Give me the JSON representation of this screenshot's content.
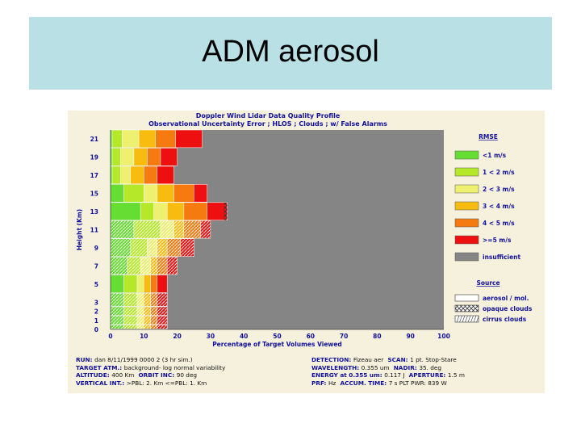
{
  "slide": {
    "title": "ADM aerosol"
  },
  "chart_data": {
    "type": "bar",
    "orientation": "horizontal-stacked",
    "title": "Doppler Wind Lidar Data Quality Profile",
    "subtitle": "Observational Uncertainty Error ; HLOS ; Clouds ; w/ False Alarms",
    "xlabel": "Percentage of Target Volumes Viewed",
    "ylabel": "Height (Km)",
    "xlim": [
      0,
      100
    ],
    "ylim": [
      0,
      22
    ],
    "x_ticks": [
      "0",
      "10",
      "20",
      "30",
      "40",
      "50",
      "60",
      "70",
      "80",
      "90",
      "100"
    ],
    "y_ticks": [
      {
        "label": "0",
        "value": 0
      },
      {
        "label": "1",
        "value": 1
      },
      {
        "label": "2",
        "value": 2
      },
      {
        "label": "3",
        "value": 3
      },
      {
        "label": "5",
        "value": 5
      },
      {
        "label": "7",
        "value": 7
      },
      {
        "label": "9",
        "value": 9
      },
      {
        "label": "11",
        "value": 11
      },
      {
        "label": "13",
        "value": 13
      },
      {
        "label": "15",
        "value": 15
      },
      {
        "label": "17",
        "value": 17
      },
      {
        "label": "19",
        "value": 19
      },
      {
        "label": "21",
        "value": 21
      }
    ],
    "categories_order": [
      "<1 m/s",
      "1 < 2 m/s",
      "2 < 3 m/s",
      "3 < 4 m/s",
      "4 < 5 m/s",
      ">=5 m/s",
      "insufficient"
    ],
    "layers": [
      {
        "bottom": 20,
        "top": 22,
        "values": [
          0.5,
          3,
          5,
          5,
          6,
          8
        ],
        "source": "aerosol"
      },
      {
        "bottom": 18,
        "top": 20,
        "values": [
          0.5,
          2.5,
          4,
          4,
          4,
          5
        ],
        "source": "aerosol"
      },
      {
        "bottom": 16,
        "top": 18,
        "values": [
          0.5,
          2.5,
          3,
          4,
          4,
          5
        ],
        "source": "aerosol"
      },
      {
        "bottom": 14,
        "top": 16,
        "values": [
          4,
          6,
          4,
          5,
          6,
          4
        ],
        "source": "aerosol"
      },
      {
        "bottom": 12,
        "top": 14,
        "values": [
          9,
          4,
          4,
          5,
          7,
          6
        ],
        "source": "opaque",
        "opaque_start": 34
      },
      {
        "bottom": 10,
        "top": 12,
        "values": [
          7,
          8,
          4,
          3,
          5,
          3
        ],
        "source": "cirrus"
      },
      {
        "bottom": 8,
        "top": 10,
        "values": [
          6,
          5,
          3,
          3,
          4,
          4
        ],
        "source": "cirrus"
      },
      {
        "bottom": 6,
        "top": 8,
        "values": [
          5,
          4,
          3,
          2,
          3,
          3
        ],
        "source": "cirrus"
      },
      {
        "bottom": 4,
        "top": 6,
        "values": [
          4,
          4,
          2,
          2,
          2,
          3
        ],
        "source": "aerosol"
      },
      {
        "bottom": 2.5,
        "top": 4,
        "values": [
          4,
          4,
          2,
          2,
          2,
          3
        ],
        "source": "cirrus"
      },
      {
        "bottom": 1.5,
        "top": 2.5,
        "values": [
          4,
          4,
          2,
          2,
          2,
          3
        ],
        "source": "cirrus"
      },
      {
        "bottom": 0.5,
        "top": 1.5,
        "values": [
          4,
          4,
          2,
          2,
          2,
          3
        ],
        "source": "cirrus"
      },
      {
        "bottom": 0,
        "top": 0.5,
        "values": [
          4,
          4,
          2,
          2,
          2,
          3
        ],
        "source": "cirrus"
      }
    ],
    "legend": {
      "position": "right",
      "rmse_title": "RMSE",
      "rmse_items": [
        {
          "label": "<1 m/s",
          "color": "#66dd33"
        },
        {
          "label": "1 < 2 m/s",
          "color": "#b4e828"
        },
        {
          "label": "2 < 3 m/s",
          "color": "#eef070"
        },
        {
          "label": "3 < 4 m/s",
          "color": "#f8bb10"
        },
        {
          "label": "4 < 5 m/s",
          "color": "#f57a10"
        },
        {
          "label": ">=5 m/s",
          "color": "#ee1010"
        },
        {
          "label": "insufficient",
          "color": "#858585"
        }
      ],
      "source_title": "Source",
      "source_items": [
        {
          "label": "aerosol / mol.",
          "pattern": "none"
        },
        {
          "label": "opaque clouds",
          "pattern": "cross"
        },
        {
          "label": "cirrus clouds",
          "pattern": "hatch"
        }
      ]
    },
    "colors": {
      "plot_background": "#858585",
      "figure_background": "#f6f1dd",
      "label_blue": "#1010a0"
    }
  },
  "run_info": {
    "left": [
      {
        "key": "RUN:",
        "value": "dan 8/11/1999 0000 2 (3 hr sim.)"
      },
      {
        "key": "TARGET ATM.:",
        "value": "background- log normal variability"
      },
      {
        "key": "ALTITUDE:",
        "value": "400 Km",
        "key2": "ORBIT INC:",
        "value2": "90 deg"
      },
      {
        "key": "VERTICAL INT.:",
        "value": ">PBL: 2. Km  <=PBL: 1. Km"
      }
    ],
    "right": [
      {
        "key": "DETECTION:",
        "value": "Fizeau aer",
        "key2": "SCAN:",
        "value2": "1 pt. Stop-Stare"
      },
      {
        "key": "WAVELENGTH:",
        "value": "0.355 um",
        "key2": "NADIR:",
        "value2": "35. deg"
      },
      {
        "key": "ENERGY at 0.355 um:",
        "value": "0.117 J",
        "key2": "APERTURE:",
        "value2": "1.5 m"
      },
      {
        "key": "PRF:",
        "value": "Hz",
        "key2": "ACCUM. TIME:",
        "value2": "7 s  PLT PWR: 839 W"
      }
    ]
  }
}
